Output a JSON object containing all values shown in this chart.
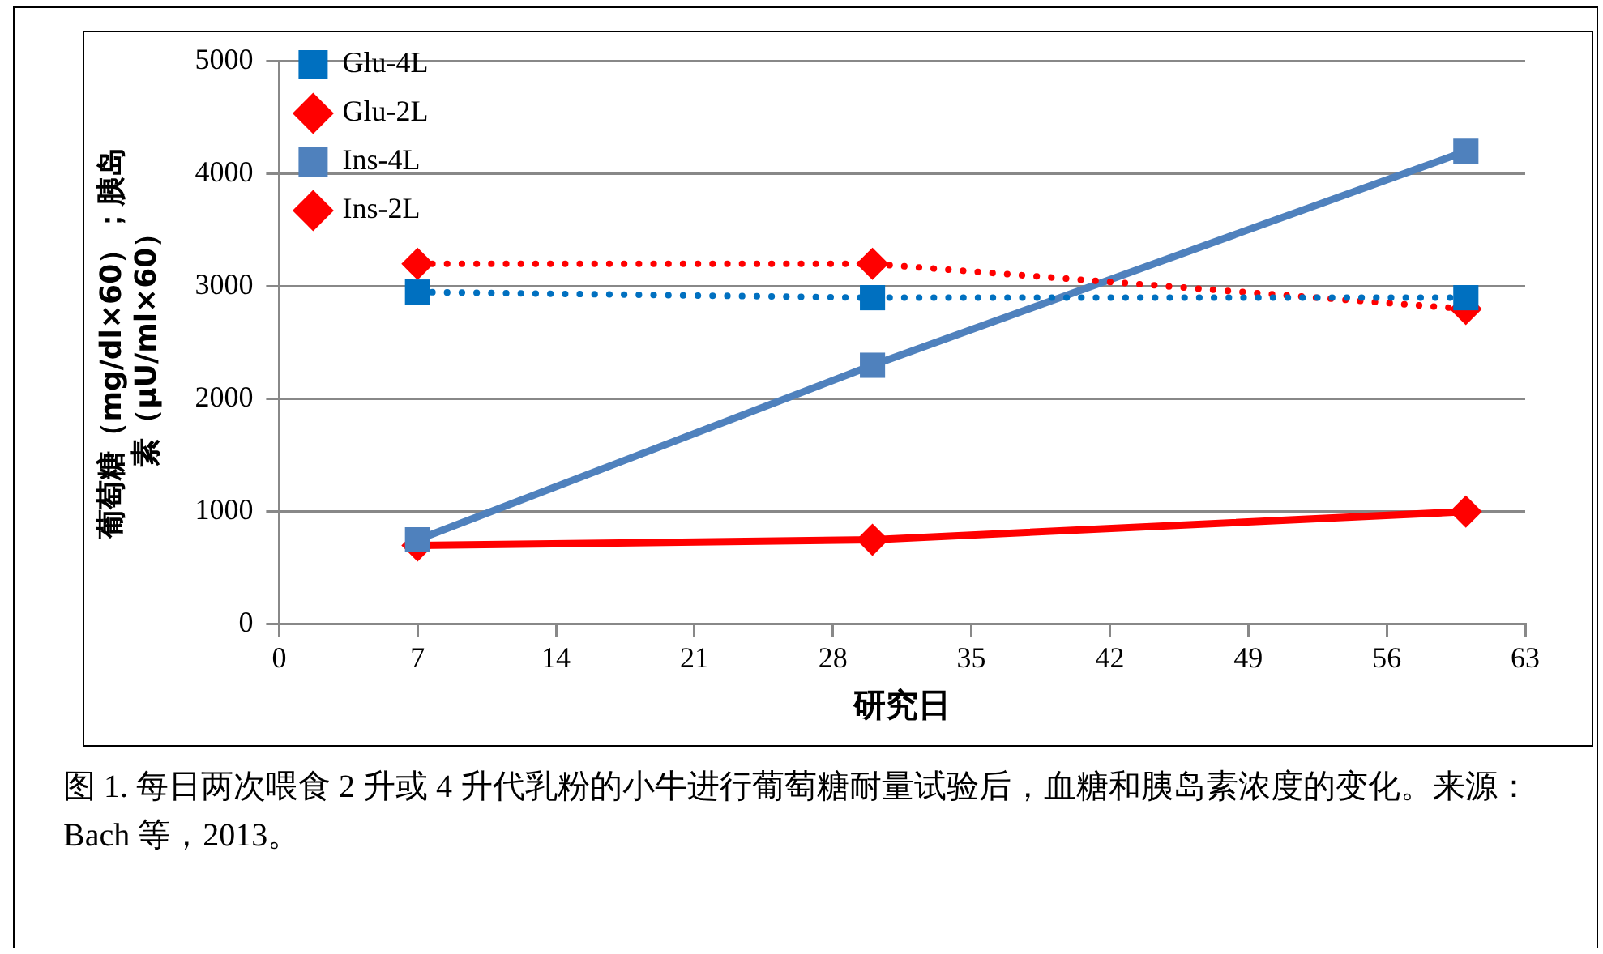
{
  "chart_data": {
    "type": "line",
    "xlabel": "研究日",
    "ylabel": "葡萄糖（mg/dl×60）；胰岛素（μU/ml×60）",
    "x": [
      7,
      30,
      60
    ],
    "xlim": [
      0,
      63
    ],
    "xticks": [
      0,
      7,
      14,
      21,
      28,
      35,
      42,
      49,
      56,
      63
    ],
    "ylim": [
      0,
      5000
    ],
    "yticks": [
      0,
      1000,
      2000,
      3000,
      4000,
      5000
    ],
    "grid": "y",
    "legend": "top left",
    "series": [
      {
        "name": "Ins-2L",
        "color": "#ff0000",
        "values": [
          700,
          750,
          1000
        ],
        "marker": "diamond",
        "line_style": "solid"
      },
      {
        "name": "Ins-4L",
        "color": "#4f81bd",
        "values": [
          750,
          2300,
          4200
        ],
        "marker": "square",
        "line_style": "solid"
      },
      {
        "name": "Glu-2L",
        "color": "#ff0000",
        "values": [
          3200,
          3200,
          2800
        ],
        "marker": "diamond",
        "line_style": "dotted"
      },
      {
        "name": "Glu-4L",
        "color": "#0070c0",
        "values": [
          2950,
          2900,
          2900
        ],
        "marker": "square",
        "line_style": "dotted"
      }
    ],
    "annotations": [
      "图 1. 每日两次喂食 2 升或 4 升代乳粉的小牛进行葡萄糖耐量试验后，血糖和胰岛素浓度的变化。来源：Bach 等，2013。"
    ]
  }
}
